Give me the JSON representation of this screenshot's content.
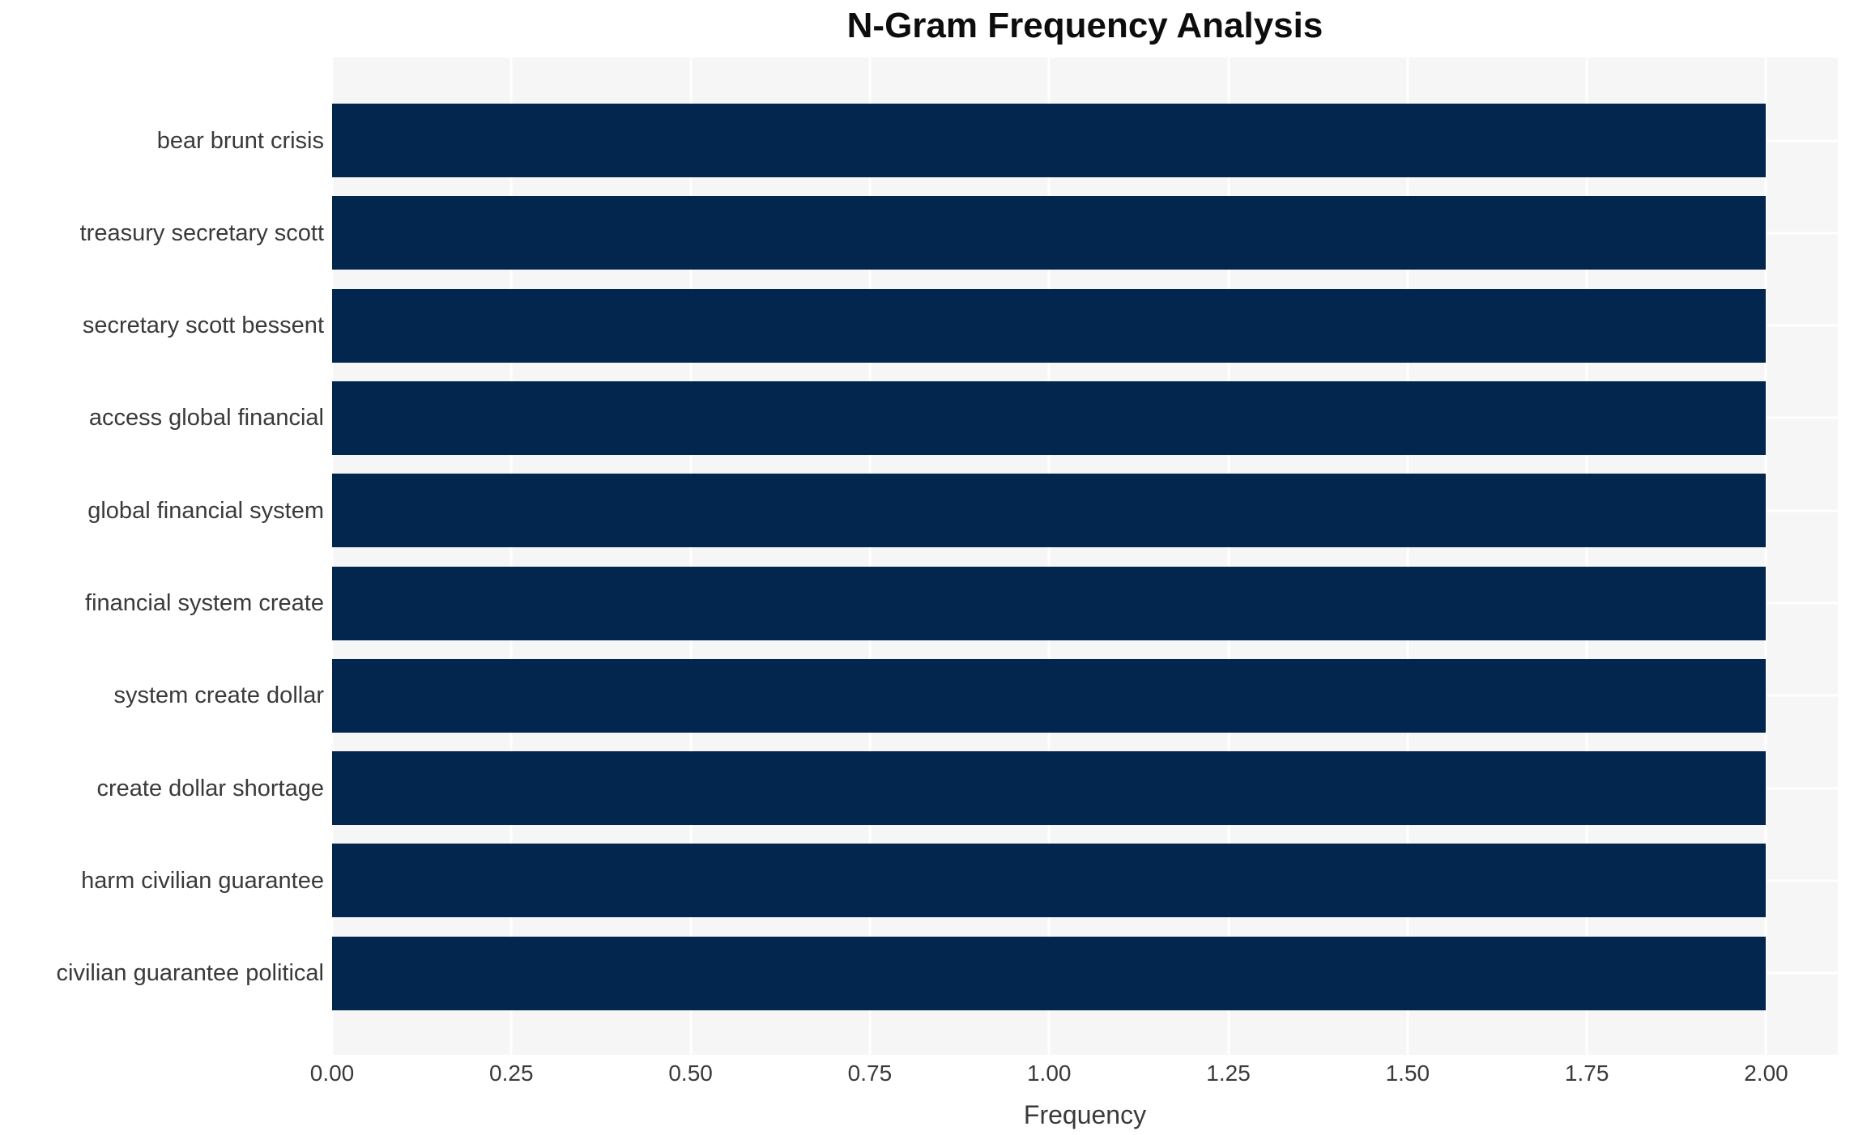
{
  "chart_data": {
    "type": "bar",
    "orientation": "horizontal",
    "title": "N-Gram Frequency Analysis",
    "xlabel": "Frequency",
    "ylabel": "",
    "categories": [
      "bear brunt crisis",
      "treasury secretary scott",
      "secretary scott bessent",
      "access global financial",
      "global financial system",
      "financial system create",
      "system create dollar",
      "create dollar shortage",
      "harm civilian guarantee",
      "civilian guarantee political"
    ],
    "values": [
      2,
      2,
      2,
      2,
      2,
      2,
      2,
      2,
      2,
      2
    ],
    "xlim": [
      0,
      2.1
    ],
    "xticks": [
      0,
      0.25,
      0.5,
      0.75,
      1,
      1.25,
      1.5,
      1.75,
      2
    ],
    "xtick_labels": [
      "0.00",
      "0.25",
      "0.50",
      "0.75",
      "1.00",
      "1.25",
      "1.50",
      "1.75",
      "2.00"
    ],
    "legend": "none",
    "grid": {
      "vertical": true,
      "horizontal": true,
      "color": "#ffffff"
    },
    "colors": {
      "bar": "#02264e",
      "plot_background": "#f6f6f7",
      "figure_background": "#ffffff",
      "tick_text": "#3a3a3a",
      "title_text": "#0d0d0d"
    }
  }
}
